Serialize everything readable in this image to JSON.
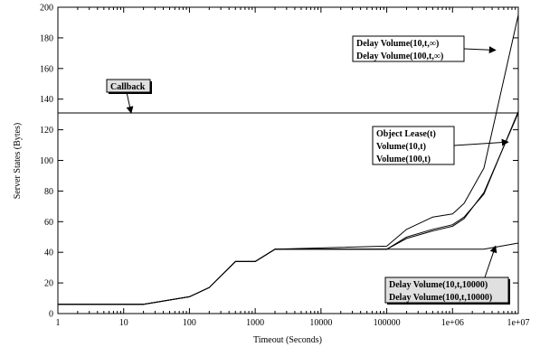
{
  "chart_data": {
    "type": "line",
    "xscale": "log",
    "xlabel": "Timeout (Seconds)",
    "ylabel": "Server States (Bytes)",
    "xlim": [
      1,
      10000000
    ],
    "ylim": [
      0,
      200
    ],
    "grid": false,
    "legend": "none",
    "x_ticks": [
      {
        "v": 1,
        "label": "1"
      },
      {
        "v": 10,
        "label": "10"
      },
      {
        "v": 100,
        "label": "100"
      },
      {
        "v": 1000,
        "label": "1000"
      },
      {
        "v": 10000,
        "label": "10000"
      },
      {
        "v": 100000,
        "label": "100000"
      },
      {
        "v": 1000000,
        "label": "1e+06"
      },
      {
        "v": 10000000,
        "label": "1e+07"
      }
    ],
    "y_ticks": [
      0,
      20,
      40,
      60,
      80,
      100,
      120,
      140,
      160,
      180,
      200
    ],
    "series": [
      {
        "x": [
          1,
          20,
          100,
          200,
          500,
          1000,
          2000,
          100000,
          10000000
        ],
        "y": [
          131,
          131,
          131,
          131,
          131,
          131,
          131,
          131,
          131
        ]
      },
      {
        "x": [
          1,
          20,
          100,
          200,
          500,
          1000,
          2000,
          100000,
          200000,
          500000,
          1000000,
          1500000,
          3000000,
          10000000
        ],
        "y": [
          6,
          6,
          11,
          17,
          34,
          34,
          42,
          44,
          55,
          63,
          65,
          72,
          95,
          195
        ]
      },
      {
        "x": [
          1,
          20,
          100,
          200,
          500,
          1000,
          2000,
          100000,
          200000,
          500000,
          1000000,
          1500000,
          3000000,
          10000000
        ],
        "y": [
          6,
          6,
          11,
          17,
          34,
          34,
          42,
          42,
          49,
          54,
          57,
          62,
          79,
          131
        ]
      },
      {
        "x": [
          1,
          20,
          100,
          200,
          500,
          1000,
          2000,
          100000,
          200000,
          500000,
          1000000,
          1500000,
          3000000,
          10000000
        ],
        "y": [
          6,
          6,
          11,
          17,
          34,
          34,
          42,
          42,
          50,
          55,
          58,
          63,
          78,
          132
        ]
      },
      {
        "x": [
          1,
          20,
          100,
          200,
          500,
          1000,
          2000,
          100000,
          3000000,
          10000000
        ],
        "y": [
          6,
          6,
          11,
          17,
          34,
          34,
          42,
          42,
          42,
          46
        ]
      }
    ],
    "annotations": [
      {
        "lines": [
          "Callback"
        ],
        "target": [
          13,
          131
        ],
        "shaded": true
      },
      {
        "lines": [
          "Delay Volume(10,t,∞)",
          "Delay Volume(100,t,∞)"
        ],
        "target": [
          4500000,
          172
        ],
        "shaded": false
      },
      {
        "lines": [
          "Object Lease(t)",
          "Volume(10,t)",
          "Volume(100,t)"
        ],
        "target": [
          7000000,
          112
        ],
        "shaded": false
      },
      {
        "lines": [
          "Delay Volume(10,t,10000)",
          "Delay Volume(100,t,10000)"
        ],
        "target": [
          4500000,
          44
        ],
        "shaded": true
      }
    ]
  }
}
